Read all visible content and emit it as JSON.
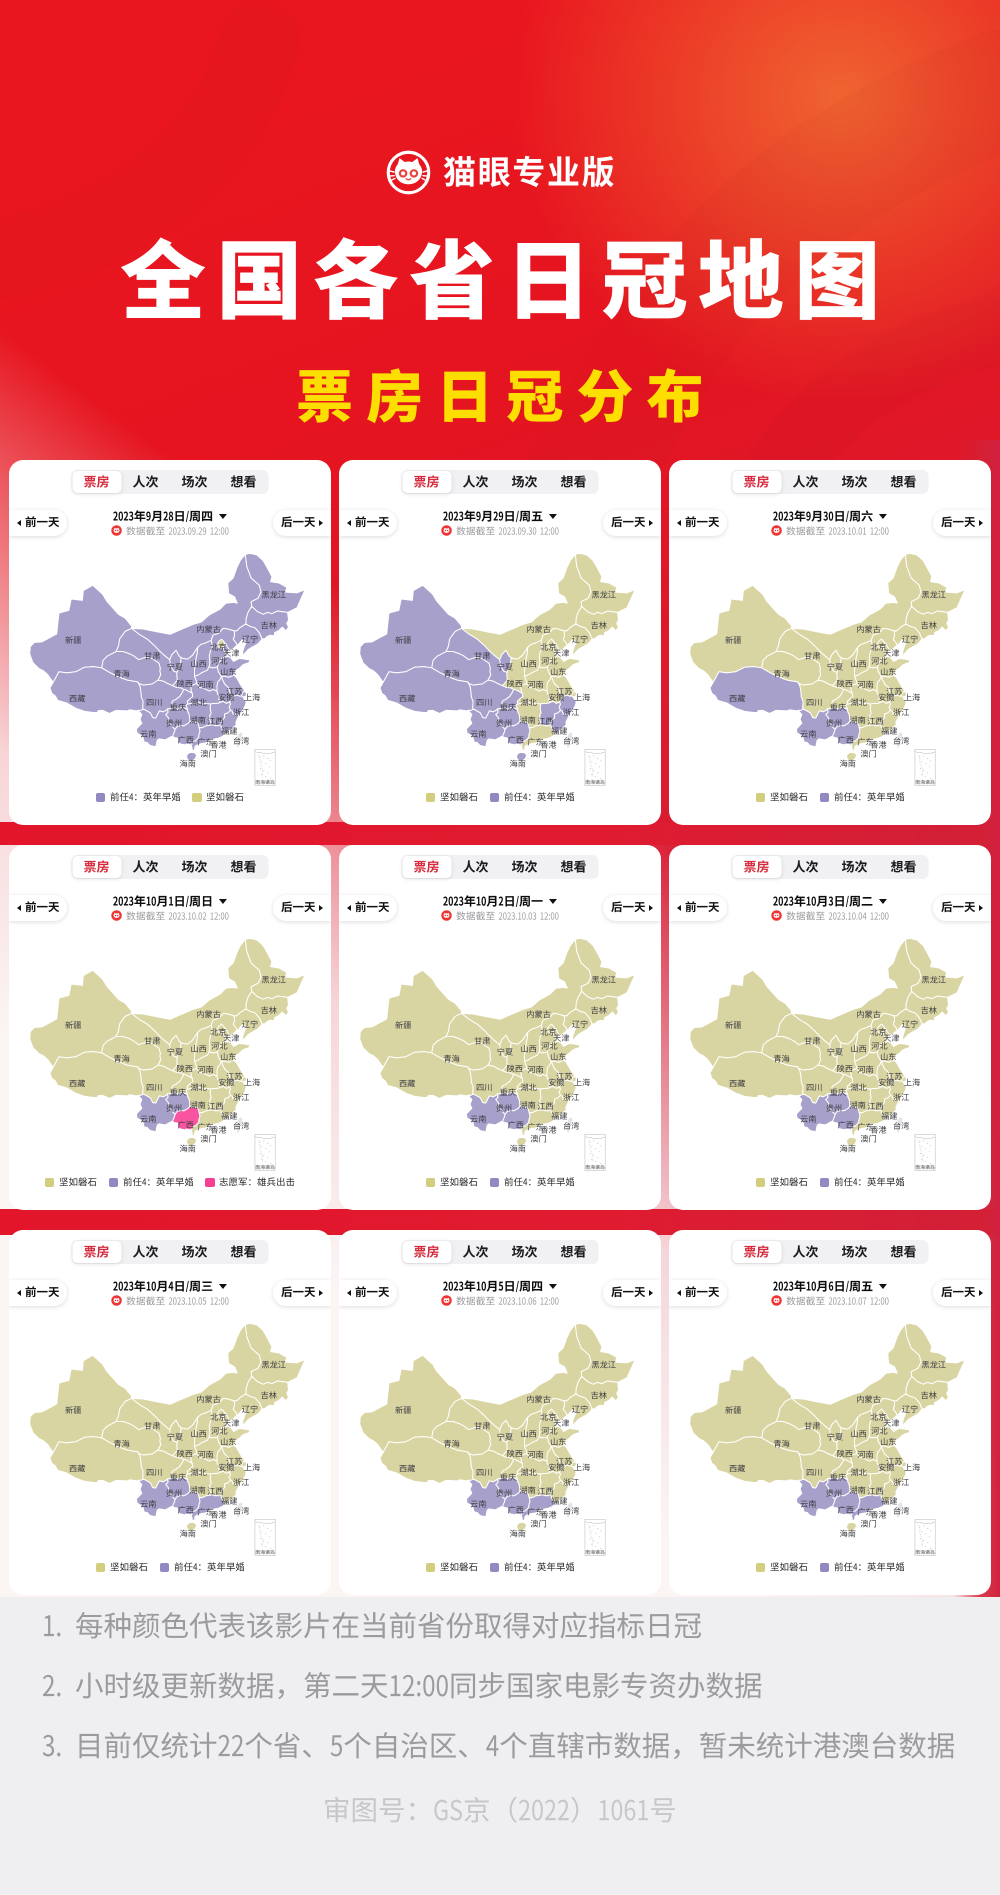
{
  "header": {
    "brand": "猫眼专业版",
    "title": "全国各省日冠地图",
    "subtitle": "票房日冠分布"
  },
  "card_ui": {
    "tabs": [
      {
        "label": "票房",
        "active": true
      },
      {
        "label": "人次",
        "active": false
      },
      {
        "label": "场次",
        "active": false
      },
      {
        "label": "想看",
        "active": false
      }
    ],
    "prev_label": "前一天",
    "next_label": "后一天"
  },
  "movies": {
    "rock": {
      "title": "坚如磐石",
      "color": "#d9d5a2",
      "legend_color": "#d2ce7e"
    },
    "qr4": {
      "title": "前任4：英年早婚",
      "color": "#a7a0cb",
      "legend_color": "#9189c1"
    },
    "vol": {
      "title": "志愿军：雄兵出击",
      "color": "#f9549f",
      "legend_color": "#f43f92"
    }
  },
  "uncounted_color": "#e4e4e7",
  "cards": [
    {
      "date": "2023年9月28日/周四",
      "cutoff": "数据截至 2023.09.29 12:00",
      "legend": [
        "qr4",
        "rock"
      ],
      "default": "qr4",
      "overrides": {
        "beijing": "rock"
      }
    },
    {
      "date": "2023年9月29日/周五",
      "cutoff": "数据截至 2023.09.30 12:00",
      "legend": [
        "rock",
        "qr4"
      ],
      "default": "rock",
      "overrides": {
        "xinjiang": "qr4",
        "xizang": "qr4",
        "qinghai": "qr4",
        "gansu": "qr4",
        "ningxia": "qr4",
        "sichuan": "qr4",
        "chongqing": "qr4",
        "yunnan": "qr4",
        "guizhou": "qr4",
        "guangxi": "qr4",
        "hainan": "qr4",
        "zhejiang": "qr4",
        "jiangxi": "qr4",
        "fujian": "qr4"
      }
    },
    {
      "date": "2023年9月30日/周六",
      "cutoff": "数据截至 2023.10.01 12:00",
      "legend": [
        "rock",
        "qr4"
      ],
      "default": "rock",
      "overrides": {
        "xizang": "qr4",
        "yunnan": "qr4",
        "guizhou": "qr4",
        "guangxi": "qr4"
      }
    },
    {
      "date": "2023年10月1日/周日",
      "cutoff": "数据截至 2023.10.02 12:00",
      "legend": [
        "rock",
        "qr4",
        "vol"
      ],
      "default": "rock",
      "overrides": {
        "yunnan": "qr4",
        "guizhou": "qr4",
        "guangxi": "vol"
      }
    },
    {
      "date": "2023年10月2日/周一",
      "cutoff": "数据截至 2023.10.03 12:00",
      "legend": [
        "rock",
        "qr4"
      ],
      "default": "rock",
      "overrides": {
        "yunnan": "qr4",
        "guizhou": "qr4",
        "guangxi": "qr4"
      }
    },
    {
      "date": "2023年10月3日/周二",
      "cutoff": "数据截至 2023.10.04 12:00",
      "legend": [
        "rock",
        "qr4"
      ],
      "default": "rock",
      "overrides": {
        "yunnan": "qr4",
        "guizhou": "qr4",
        "guangxi": "qr4"
      }
    },
    {
      "date": "2023年10月4日/周三",
      "cutoff": "数据截至 2023.10.05 12:00",
      "legend": [
        "rock",
        "qr4"
      ],
      "default": "rock",
      "overrides": {
        "yunnan": "qr4",
        "guizhou": "qr4",
        "guangxi": "qr4",
        "guangdong": "qr4"
      }
    },
    {
      "date": "2023年10月5日/周四",
      "cutoff": "数据截至 2023.10.06 12:00",
      "legend": [
        "rock",
        "qr4"
      ],
      "default": "rock",
      "overrides": {
        "yunnan": "qr4",
        "guizhou": "qr4",
        "guangxi": "qr4",
        "guangdong": "qr4"
      }
    },
    {
      "date": "2023年10月6日/周五",
      "cutoff": "数据截至 2023.10.07 12:00",
      "legend": [
        "rock",
        "qr4"
      ],
      "default": "rock",
      "overrides": {
        "yunnan": "qr4",
        "guizhou": "qr4",
        "guangxi": "qr4",
        "guangdong": "qr4"
      }
    }
  ],
  "map": {
    "province_labels": {
      "heilongjiang": "黑龙江",
      "jilin": "吉林",
      "liaoning": "辽宁",
      "neimenggu": "内蒙古",
      "xinjiang": "新疆",
      "beijing": "北京",
      "gansu": "甘肃",
      "hebei": "河北",
      "ningxia": "宁夏",
      "shanxi": "山西",
      "shandong": "山东",
      "qinghai": "青海",
      "shaanxi": "陕西",
      "henan": "河南",
      "jiangsu": "江苏",
      "anhui": "安徽",
      "xizang": "西藏",
      "sichuan": "四川",
      "hubei": "湖北",
      "zhejiang": "浙江",
      "hunan": "湖南",
      "jiangxi": "江西",
      "guizhou": "贵州",
      "fujian": "福建",
      "yunnan": "云南",
      "guangxi": "广西",
      "guangdong": "广东",
      "hainan": "海南",
      "tianjin": "天津",
      "shanghai": "上海",
      "chongqing": "重庆",
      "xianggang": "香港",
      "aomen": "澳门",
      "taiwan": "台湾"
    },
    "inset_label": "南海诸岛"
  },
  "footer": {
    "notes": [
      {
        "num": "1.",
        "text": "每种颜色代表该影片在当前省份取得对应指标日冠"
      },
      {
        "num": "2.",
        "text": "小时级更新数据，第二天12:00同步国家电影专资办数据"
      },
      {
        "num": "3.",
        "text": "目前仅统计22个省、5个自治区、4个直辖市数据，暂未统计港澳台数据"
      }
    ],
    "license": "审图号：GS京（2022）1061号"
  }
}
